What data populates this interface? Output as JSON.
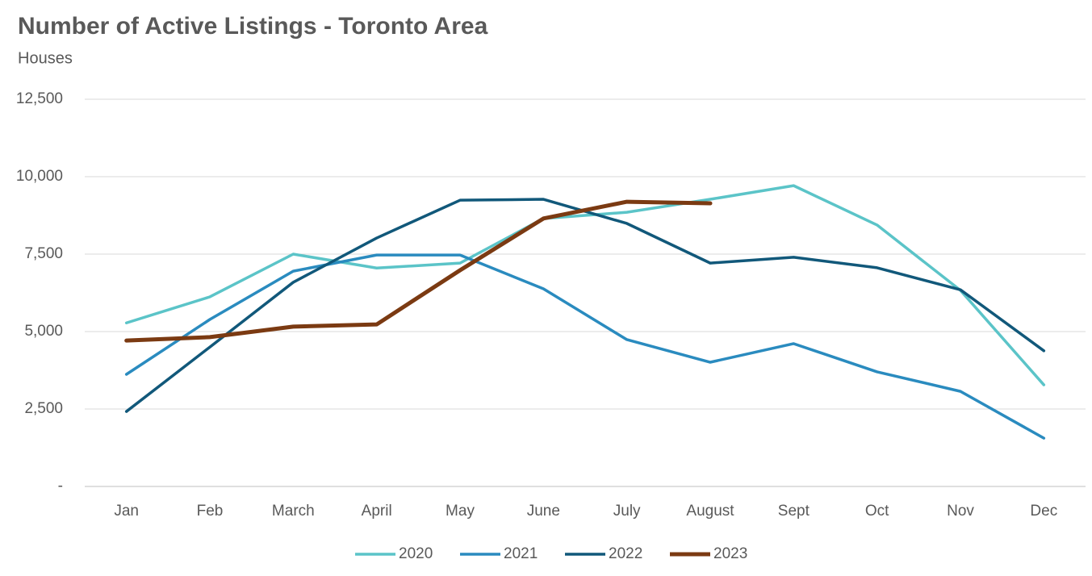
{
  "chart_data": {
    "type": "line",
    "title": "Number of Active Listings - Toronto Area",
    "subtitle": "Houses",
    "categories": [
      "Jan",
      "Feb",
      "March",
      "April",
      "May",
      "June",
      "July",
      "August",
      "Sept",
      "Oct",
      "Nov",
      "Dec"
    ],
    "series": [
      {
        "name": "2020",
        "color": "#5bc4c8",
        "values": [
          5280,
          6120,
          7500,
          7050,
          7210,
          8650,
          8850,
          9270,
          9710,
          8440,
          6330,
          3280
        ]
      },
      {
        "name": "2021",
        "color": "#2a8bbf",
        "values": [
          3620,
          5390,
          6950,
          7470,
          7470,
          6380,
          4740,
          4010,
          4610,
          3700,
          3070,
          1560
        ]
      },
      {
        "name": "2022",
        "color": "#11587a",
        "values": [
          2420,
          4500,
          6590,
          8020,
          9240,
          9270,
          8490,
          7210,
          7400,
          7060,
          6350,
          4380
        ]
      },
      {
        "name": "2023",
        "color": "#7b3a12",
        "values": [
          4710,
          4820,
          5160,
          5230,
          6980,
          8650,
          9190,
          9140,
          null,
          null,
          null,
          null
        ]
      }
    ],
    "ylim": [
      0,
      12500
    ],
    "yticks": [
      {
        "value": 0,
        "label": "-"
      },
      {
        "value": 2500,
        "label": "2,500"
      },
      {
        "value": 5000,
        "label": "5,000"
      },
      {
        "value": 7500,
        "label": "7,500"
      },
      {
        "value": 10000,
        "label": "10,000"
      },
      {
        "value": 12500,
        "label": "12,500"
      }
    ],
    "grid": true,
    "legend": "bottom"
  }
}
